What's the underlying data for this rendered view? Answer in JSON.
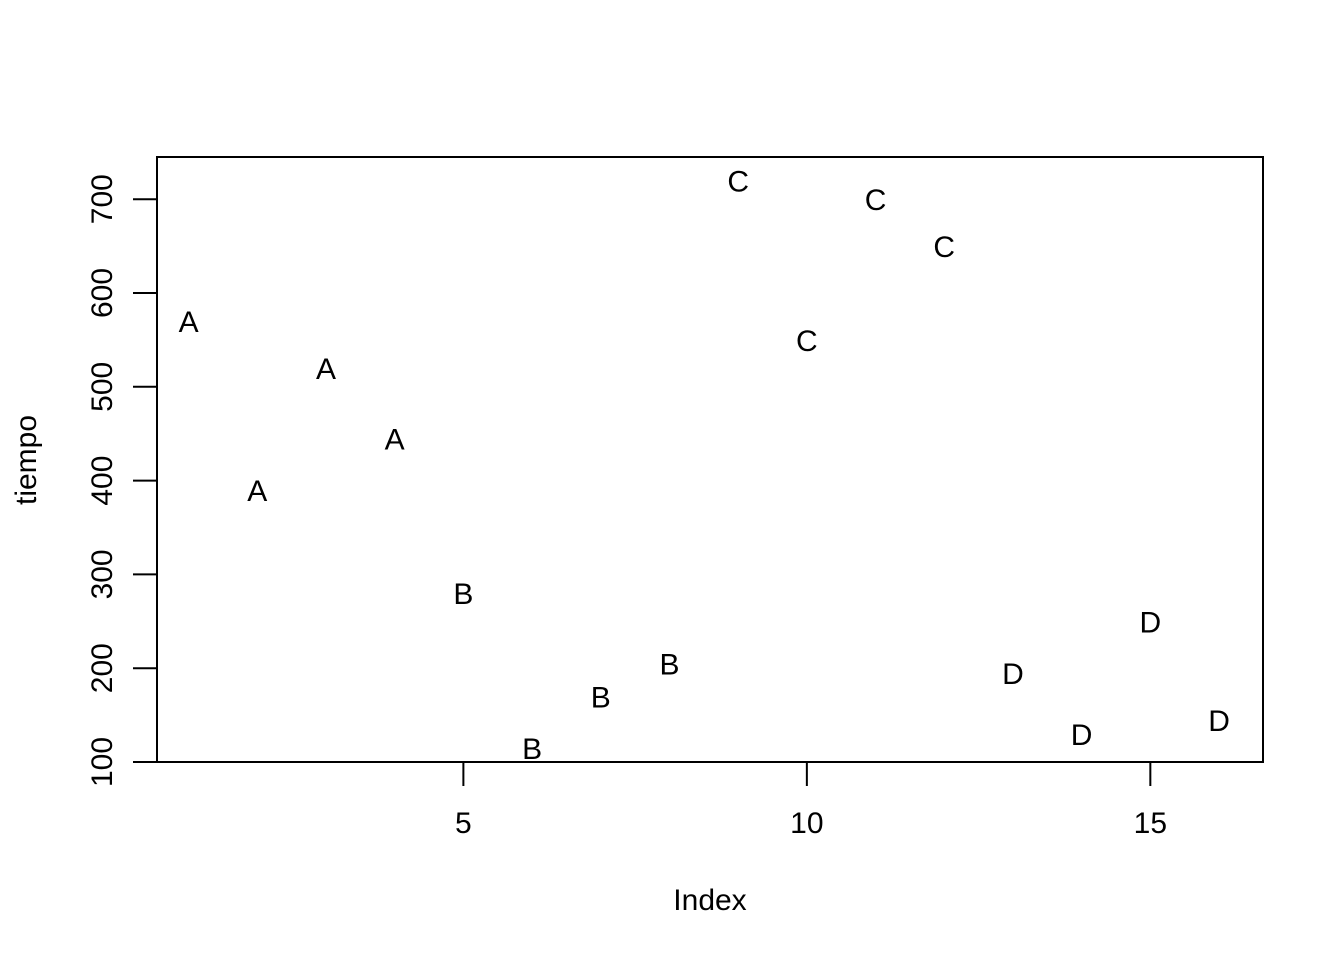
{
  "chart_data": {
    "type": "scatter",
    "title": "",
    "xlabel": "Index",
    "ylabel": "tiempo",
    "xlim": [
      0.54,
      16.64
    ],
    "ylim": [
      100,
      745
    ],
    "x_ticks": [
      5,
      10,
      15
    ],
    "y_ticks": [
      100,
      200,
      300,
      400,
      500,
      600,
      700
    ],
    "points": [
      {
        "x": 1,
        "y": 570,
        "label": "A"
      },
      {
        "x": 2,
        "y": 390,
        "label": "A"
      },
      {
        "x": 3,
        "y": 520,
        "label": "A"
      },
      {
        "x": 4,
        "y": 445,
        "label": "A"
      },
      {
        "x": 5,
        "y": 280,
        "label": "B"
      },
      {
        "x": 6,
        "y": 115,
        "label": "B"
      },
      {
        "x": 7,
        "y": 170,
        "label": "B"
      },
      {
        "x": 8,
        "y": 205,
        "label": "B"
      },
      {
        "x": 9,
        "y": 720,
        "label": "C"
      },
      {
        "x": 10,
        "y": 550,
        "label": "C"
      },
      {
        "x": 11,
        "y": 700,
        "label": "C"
      },
      {
        "x": 12,
        "y": 650,
        "label": "C"
      },
      {
        "x": 13,
        "y": 195,
        "label": "D"
      },
      {
        "x": 14,
        "y": 130,
        "label": "D"
      },
      {
        "x": 15,
        "y": 250,
        "label": "D"
      },
      {
        "x": 16,
        "y": 145,
        "label": "D"
      }
    ],
    "grid": false,
    "legend": "none"
  }
}
